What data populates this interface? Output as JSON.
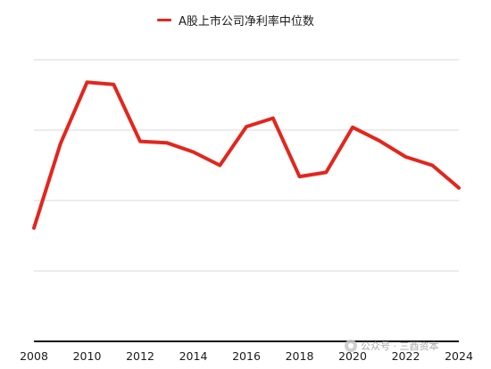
{
  "chart_data": {
    "type": "line",
    "title": "",
    "xlabel": "",
    "ylabel": "",
    "legend": {
      "position": "top-center",
      "entries": [
        "A股上市公司净利率中位数"
      ]
    },
    "grid": {
      "horizontal": true,
      "vertical": false
    },
    "series_color": "#e3261d",
    "x": [
      2008,
      2009,
      2010,
      2011,
      2012,
      2013,
      2014,
      2015,
      2016,
      2017,
      2018,
      2019,
      2020,
      2021,
      2022,
      2023,
      2024
    ],
    "xticks": [
      "2008",
      "2010",
      "2012",
      "2014",
      "2016",
      "2018",
      "2020",
      "2022",
      "2024"
    ],
    "yticks_shown": false,
    "ylim": [
      0,
      4
    ],
    "series": [
      {
        "name": "A股上市公司净利率中位数",
        "values": [
          1.61,
          2.81,
          3.68,
          3.65,
          2.84,
          2.82,
          2.69,
          2.5,
          3.05,
          3.17,
          2.34,
          2.4,
          3.04,
          2.85,
          2.62,
          2.5,
          2.18
        ]
      }
    ]
  },
  "watermark": {
    "text": "公众号 · 三酉资本",
    "icon": "wechat-icon"
  }
}
